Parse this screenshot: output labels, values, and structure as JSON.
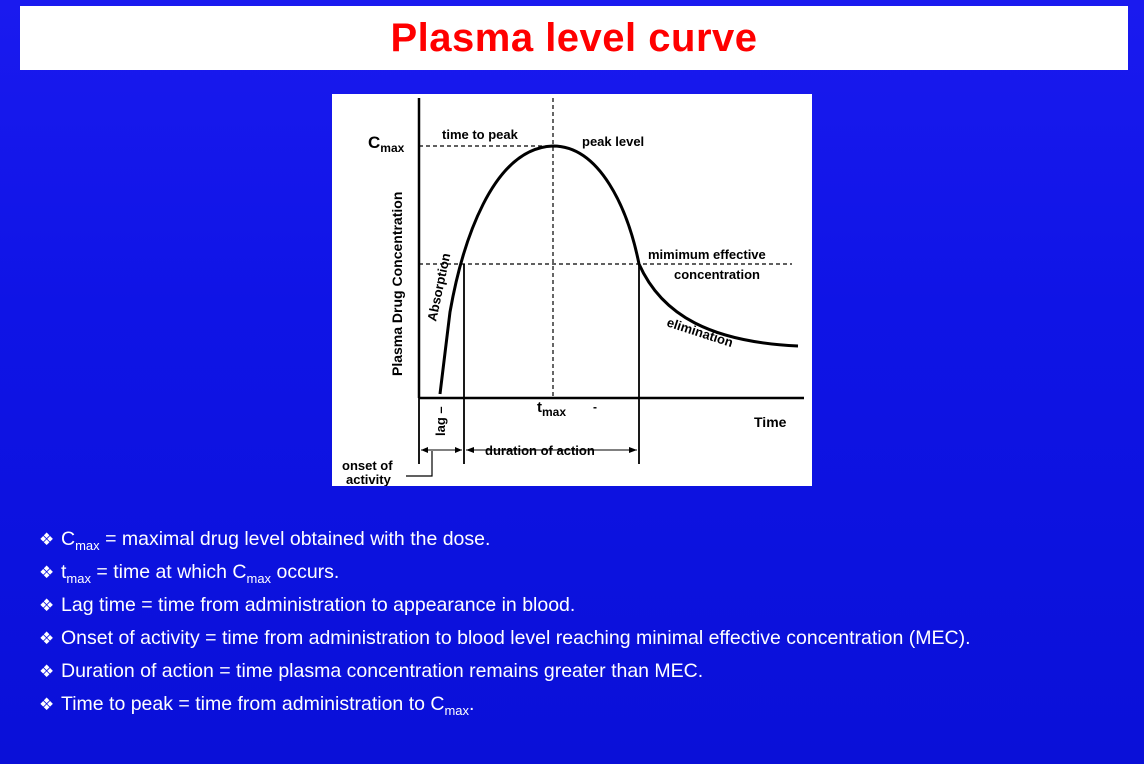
{
  "title": "Plasma level curve",
  "figure": {
    "y_axis_label": "Plasma Drug Concentration",
    "x_axis_label": "Time",
    "cmax_label": "C",
    "cmax_sub": "max",
    "tmax_label": "t",
    "tmax_sub": "max",
    "tmax_extra": "-",
    "time_to_peak": "time to peak",
    "peak_level": "peak level",
    "mec_line1": "mimimum effective",
    "mec_line2": "concentration",
    "absorption": "Absorption",
    "elimination": "elimination",
    "lag": "lag –",
    "duration": "duration of action",
    "onset_line1": "onset of",
    "onset_line2": "activity"
  },
  "bullets": [
    {
      "parts": [
        {
          "t": "C"
        },
        {
          "s": "max"
        },
        {
          "t": " = maximal drug level obtained with the dose."
        }
      ]
    },
    {
      "parts": [
        {
          "t": "t"
        },
        {
          "s": "max"
        },
        {
          "t": " = time at which C"
        },
        {
          "s": "max"
        },
        {
          "t": " occurs."
        }
      ]
    },
    {
      "parts": [
        {
          "t": "Lag time = time from administration to appearance in blood."
        }
      ]
    },
    {
      "parts": [
        {
          "t": "Onset of activity = time from administration to blood level reaching minimal effective concentration (MEC)."
        }
      ]
    },
    {
      "parts": [
        {
          "t": "Duration of action = time plasma concentration remains greater than MEC."
        }
      ]
    },
    {
      "parts": [
        {
          "t": "Time to peak = time from administration to C"
        },
        {
          "s": "max"
        },
        {
          "t": "."
        }
      ]
    }
  ],
  "bullet_marker": "❖"
}
